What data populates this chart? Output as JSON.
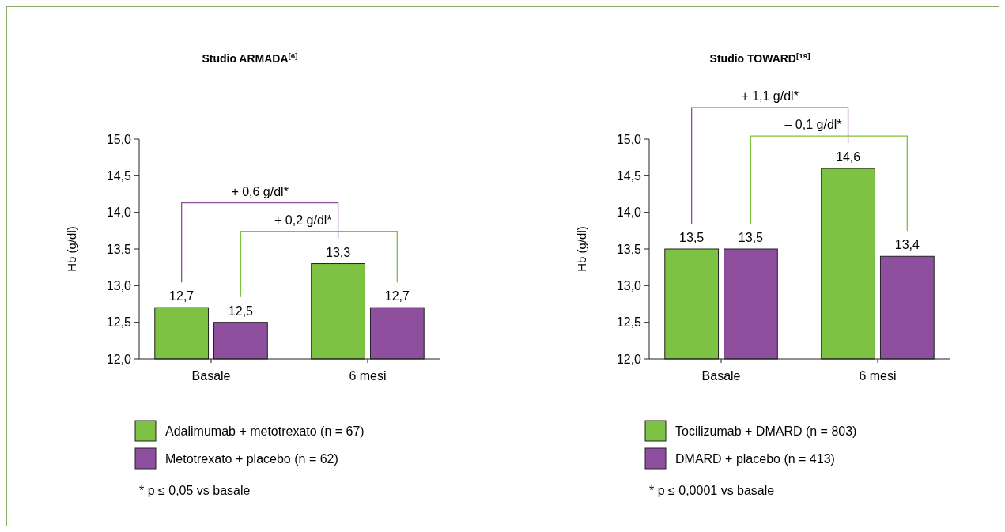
{
  "chart_data": [
    {
      "type": "bar",
      "title": "Studio ARMADA$^{[6]}$",
      "ylabel": "Hb (g/dl)",
      "categories": [
        "Basale",
        "6 mesi"
      ],
      "series": [
        {
          "name": "Adalimumab + metotrexato (n = 67)",
          "color": "#7dc242",
          "values": [
            12.7,
            13.3
          ],
          "value_labels": [
            "12,7",
            "13,3"
          ]
        },
        {
          "name": "Metotrexato + placebo (n = 62)",
          "color": "#8e4f9f",
          "values": [
            12.5,
            12.7
          ],
          "value_labels": [
            "12,5",
            "12,7"
          ]
        }
      ],
      "ylim": [
        12,
        15
      ],
      "yticks": [
        {
          "value": 12,
          "label": "12,0"
        },
        {
          "value": 12.5,
          "label": "12,5"
        },
        {
          "value": 13,
          "label": "13,0"
        },
        {
          "value": 13.5,
          "label": "13,5"
        },
        {
          "value": 14,
          "label": "14,0"
        },
        {
          "value": 14.5,
          "label": "14,5"
        },
        {
          "value": 15,
          "label": "15,0"
        }
      ],
      "legend": "bottom",
      "grid": false,
      "annotations": [
        "+ 0,6 g/dl*",
        "+ 0,2 g/dl*",
        "* p ≤ 0,05 vs basale"
      ]
    },
    {
      "type": "bar",
      "title": "Studio TOWARD$^{[19]}$",
      "ylabel": "Hb (g/dl)",
      "categories": [
        "Basale",
        "6 mesi"
      ],
      "series": [
        {
          "name": "Tocilizumab + DMARD (n = 803)",
          "color": "#7dc242",
          "values": [
            13.5,
            14.6
          ],
          "value_labels": [
            "13,5",
            "14,6"
          ]
        },
        {
          "name": "DMARD + placebo (n = 413)",
          "color": "#8e4f9f",
          "values": [
            13.5,
            13.4
          ],
          "value_labels": [
            "13,5",
            "13,4"
          ]
        }
      ],
      "ylim": [
        12,
        15
      ],
      "yticks": [
        {
          "value": 12,
          "label": "12,0"
        },
        {
          "value": 12.5,
          "label": "12,5"
        },
        {
          "value": 13,
          "label": "13,0"
        },
        {
          "value": 13.5,
          "label": "13,5"
        },
        {
          "value": 14,
          "label": "14,0"
        },
        {
          "value": 14.5,
          "label": "14,5"
        },
        {
          "value": 15,
          "label": "15,0"
        }
      ],
      "legend": "bottom",
      "grid": false,
      "annotations": [
        "+ 1,1 g/dl*",
        "– 0,1 g/dl*",
        "* p ≤ 0,0001 vs basale"
      ]
    }
  ]
}
